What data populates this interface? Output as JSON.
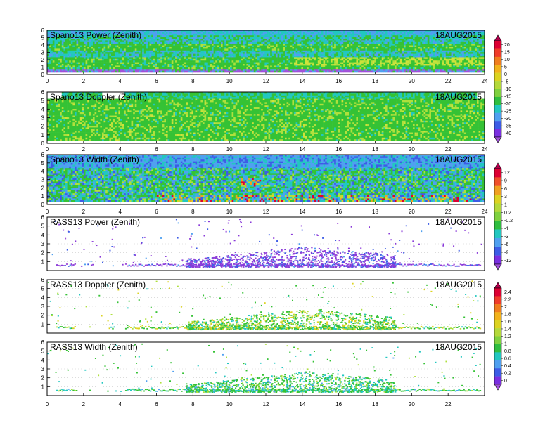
{
  "date_label": "18AUG2015",
  "chart_data": [
    {
      "type": "heatmap",
      "title": "Spano13 Power (Zenith)",
      "date": "18AUG2015",
      "xlim": [
        0,
        24
      ],
      "ylim": [
        0,
        6
      ],
      "xticks": [
        "0",
        "2",
        "4",
        "6",
        "8",
        "10",
        "12",
        "14",
        "16",
        "18",
        "20",
        "22",
        "24"
      ],
      "yticks": [
        "0",
        "1",
        "2",
        "3",
        "4",
        "5",
        "6"
      ],
      "field": "green-dominant; blue/cyan above ~4.5 and ~2.6–3.2, yellow-green bands 1.3–2.6 after 14, purple near 0.7",
      "colorbar": {
        "levels": [
          "20",
          "15",
          "10",
          "5",
          "0",
          "-5",
          "-10",
          "-15",
          "-20",
          "-25",
          "-30",
          "-35",
          "-40"
        ],
        "colors": [
          "#b3004d",
          "#dd0033",
          "#f03c2a",
          "#f07d1e",
          "#f2b21a",
          "#dcd320",
          "#b4d93a",
          "#7fd13f",
          "#2fbe3f",
          "#22c7c0",
          "#4fa0f0",
          "#3c5ce6",
          "#7a2fe0",
          "#a050d9"
        ]
      }
    },
    {
      "type": "heatmap",
      "title": "Spano13 Doppler (Zenith)",
      "date": "18AUG2015",
      "xlim": [
        0,
        24
      ],
      "ylim": [
        0,
        6
      ],
      "xticks": [
        "0",
        "2",
        "4",
        "6",
        "8",
        "10",
        "12",
        "14",
        "16",
        "18",
        "20",
        "22",
        "24"
      ],
      "yticks": [
        "0",
        "1",
        "2",
        "3",
        "4",
        "5",
        "6"
      ],
      "field": "green-dominant with light yellow-green streaks, white gaps top 5.5–6",
      "colorbar": "shared with panel 1"
    },
    {
      "type": "heatmap",
      "title": "Spano13 Width (Zenith)",
      "date": "18AUG2015",
      "xlim": [
        0,
        24
      ],
      "ylim": [
        0,
        6
      ],
      "xticks": [
        "0",
        "2",
        "4",
        "6",
        "8",
        "10",
        "12",
        "14",
        "16",
        "18",
        "20",
        "22",
        "24"
      ],
      "yticks": [
        "0",
        "1",
        "2",
        "3",
        "4",
        "5",
        "6"
      ],
      "field": "mixed green/cyan/blue; yellow-orange near 0.5–1 and red spots ~11 at 2.5–3",
      "colorbar": {
        "levels": [
          "12",
          "9",
          "6",
          "3",
          "1",
          "0.2",
          "-0.2",
          "-1",
          "-3",
          "-6",
          "-9",
          "-12"
        ],
        "colors": [
          "#b3004d",
          "#dd0033",
          "#f0502a",
          "#f0a020",
          "#dcd320",
          "#b4d93a",
          "#7fd13f",
          "#2fbe3f",
          "#22c7c0",
          "#4fa0f0",
          "#3c5ce6",
          "#7a2fe0",
          "#a050d9"
        ]
      }
    },
    {
      "type": "scatter",
      "title": "RASS13 Power (Zenith)",
      "date": "18AUG2015",
      "xlim": [
        0,
        24
      ],
      "ylim": [
        0,
        6
      ],
      "yticks": [
        "1",
        "2",
        "3",
        "4",
        "5",
        "6"
      ],
      "field": "sparse purple/blue points, dense band 0.5–2 between 8 and 19"
    },
    {
      "type": "scatter",
      "title": "RASS13 Doppler (Zenith)",
      "date": "18AUG2015",
      "xlim": [
        0,
        24
      ],
      "ylim": [
        0,
        6
      ],
      "yticks": [
        "1",
        "2",
        "3",
        "4",
        "5",
        "6"
      ],
      "field": "green/yellow points, dense band 0.5–2 between 7.5 and 19",
      "colorbar": {
        "levels": [
          "2.4",
          "2.2",
          "2",
          "1.8",
          "1.6",
          "1.4",
          "1.2",
          "1",
          "0.8",
          "0.6",
          "0.4",
          "0.2",
          "0"
        ],
        "colors": [
          "#b3004d",
          "#dd0033",
          "#f03c2a",
          "#f07d1e",
          "#f2b21a",
          "#dcd320",
          "#b4d93a",
          "#7fd13f",
          "#2fbe3f",
          "#22c7c0",
          "#4fa0f0",
          "#3c5ce6",
          "#7a2fe0",
          "#a050d9"
        ]
      }
    },
    {
      "type": "scatter",
      "title": "RASS13 Width (Zenith)",
      "date": "18AUG2015",
      "xlim": [
        0,
        24
      ],
      "ylim": [
        0,
        6
      ],
      "xticks": [
        "0",
        "2",
        "4",
        "6",
        "8",
        "10",
        "12",
        "14",
        "16",
        "18",
        "20",
        "22"
      ],
      "yticks": [
        "1",
        "2",
        "3",
        "4",
        "5",
        "6"
      ],
      "field": "green/cyan points, dense band 0.5–2 between 7.5 and 19"
    }
  ]
}
